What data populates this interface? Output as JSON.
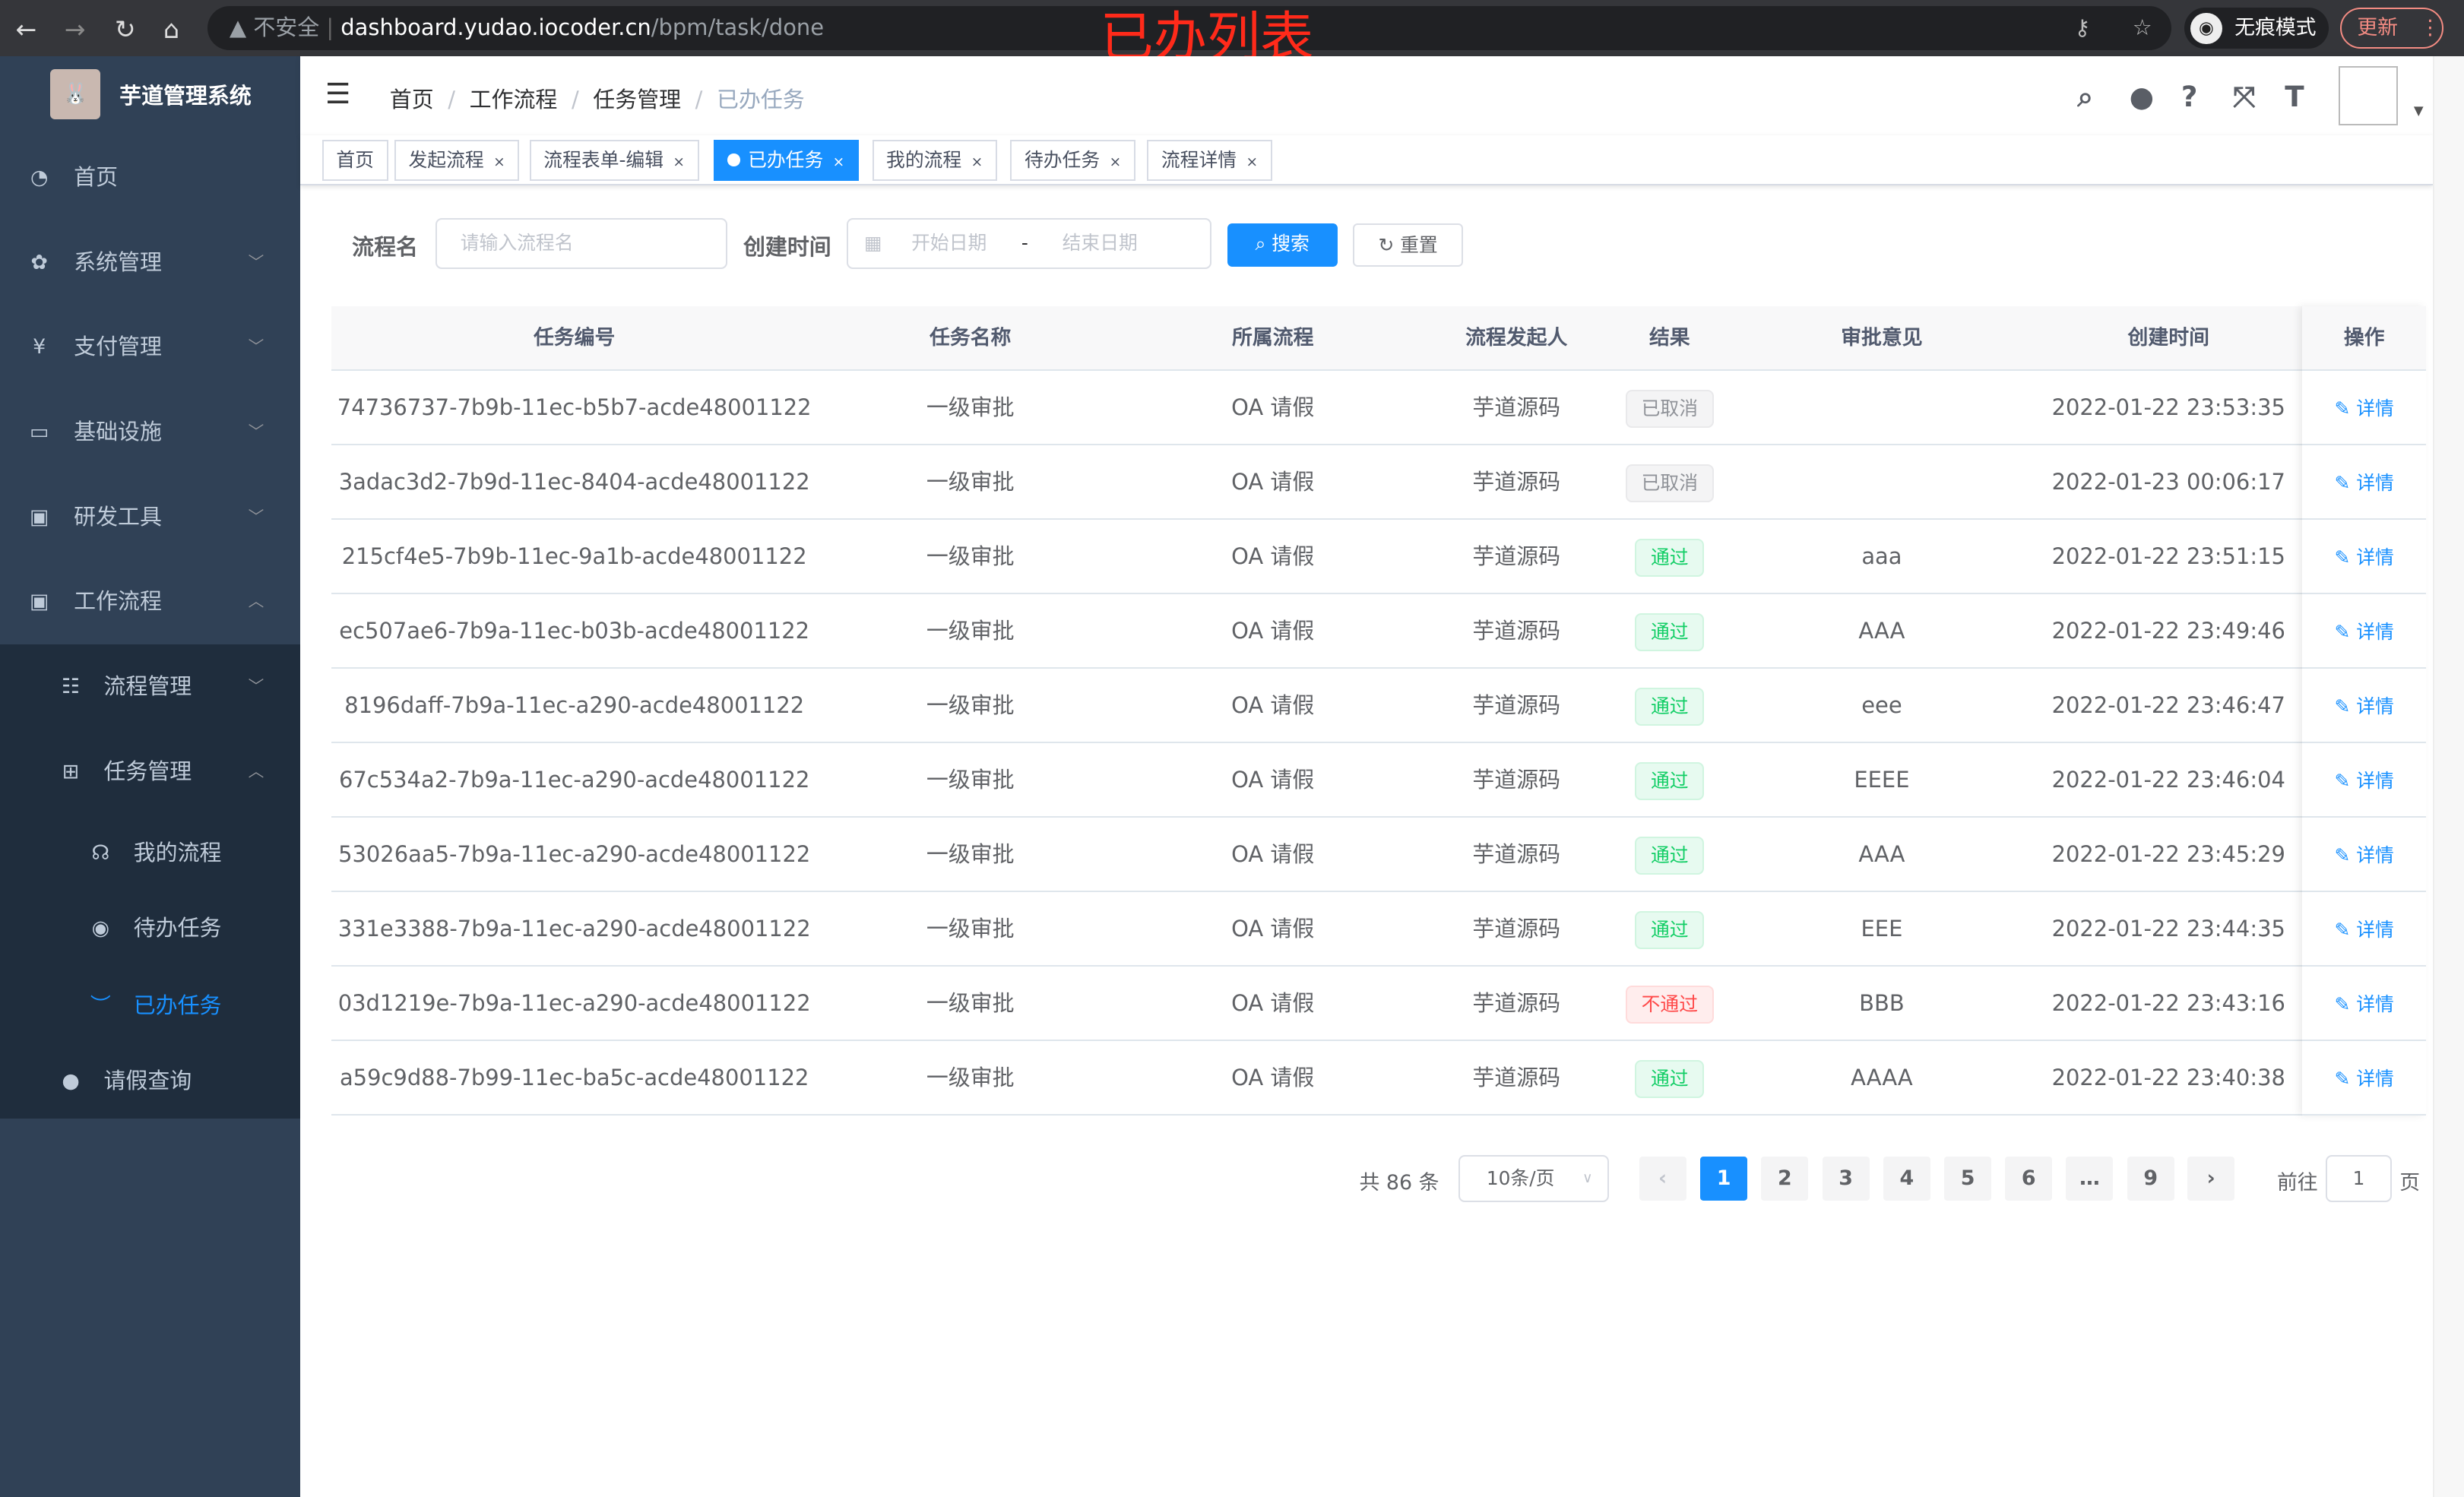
{
  "browser": {
    "security": "不安全",
    "url_host": "dashboard.yudao.iocoder.cn",
    "url_path": "/bpm/task/done",
    "incognito": "无痕模式",
    "update": "更新"
  },
  "overlay_caption": "已办列表",
  "sidebar": {
    "title": "芋道管理系统",
    "items": [
      {
        "label": "首页",
        "icon": "dashboard-icon"
      },
      {
        "label": "系统管理",
        "icon": "gear-icon"
      },
      {
        "label": "支付管理",
        "icon": "yen-icon"
      },
      {
        "label": "基础设施",
        "icon": "monitor-icon"
      },
      {
        "label": "研发工具",
        "icon": "toolbox-icon"
      },
      {
        "label": "工作流程",
        "icon": "toolbox-icon"
      },
      {
        "label": "流程管理",
        "icon": "list-icon"
      },
      {
        "label": "任务管理",
        "icon": "tree-icon"
      },
      {
        "label": "我的流程",
        "icon": "chat-icon"
      },
      {
        "label": "待办任务",
        "icon": "eye-icon"
      },
      {
        "label": "已办任务",
        "icon": "eye-closed-icon"
      },
      {
        "label": "请假查询",
        "icon": "user-icon"
      }
    ]
  },
  "breadcrumb": [
    "首页",
    "工作流程",
    "任务管理",
    "已办任务"
  ],
  "tags": [
    {
      "label": "首页"
    },
    {
      "label": "发起流程"
    },
    {
      "label": "流程表单-编辑"
    },
    {
      "label": "已办任务",
      "active": true
    },
    {
      "label": "我的流程"
    },
    {
      "label": "待办任务"
    },
    {
      "label": "流程详情"
    }
  ],
  "search": {
    "name_label": "流程名",
    "name_placeholder": "请输入流程名",
    "time_label": "创建时间",
    "start_placeholder": "开始日期",
    "sep": "-",
    "end_placeholder": "结束日期",
    "search_btn": "搜索",
    "reset_btn": "重置"
  },
  "table": {
    "headers": [
      "任务编号",
      "任务名称",
      "所属流程",
      "流程发起人",
      "结果",
      "审批意见",
      "创建时间",
      "操作"
    ],
    "rows": [
      {
        "id": "74736737-7b9b-11ec-b5b7-acde48001122",
        "name": "一级审批",
        "process": "OA 请假",
        "starter": "芋道源码",
        "result": "已取消",
        "result_type": "cancel",
        "comment": "",
        "time": "2022-01-22 23:53:35",
        "op": "详情"
      },
      {
        "id": "3adac3d2-7b9d-11ec-8404-acde48001122",
        "name": "一级审批",
        "process": "OA 请假",
        "starter": "芋道源码",
        "result": "已取消",
        "result_type": "cancel",
        "comment": "",
        "time": "2022-01-23 00:06:17",
        "op": "详情"
      },
      {
        "id": "215cf4e5-7b9b-11ec-9a1b-acde48001122",
        "name": "一级审批",
        "process": "OA 请假",
        "starter": "芋道源码",
        "result": "通过",
        "result_type": "pass",
        "comment": "aaa",
        "time": "2022-01-22 23:51:15",
        "op": "详情"
      },
      {
        "id": "ec507ae6-7b9a-11ec-b03b-acde48001122",
        "name": "一级审批",
        "process": "OA 请假",
        "starter": "芋道源码",
        "result": "通过",
        "result_type": "pass",
        "comment": "AAA",
        "time": "2022-01-22 23:49:46",
        "op": "详情"
      },
      {
        "id": "8196daff-7b9a-11ec-a290-acde48001122",
        "name": "一级审批",
        "process": "OA 请假",
        "starter": "芋道源码",
        "result": "通过",
        "result_type": "pass",
        "comment": "eee",
        "time": "2022-01-22 23:46:47",
        "op": "详情"
      },
      {
        "id": "67c534a2-7b9a-11ec-a290-acde48001122",
        "name": "一级审批",
        "process": "OA 请假",
        "starter": "芋道源码",
        "result": "通过",
        "result_type": "pass",
        "comment": "EEEE",
        "time": "2022-01-22 23:46:04",
        "op": "详情"
      },
      {
        "id": "53026aa5-7b9a-11ec-a290-acde48001122",
        "name": "一级审批",
        "process": "OA 请假",
        "starter": "芋道源码",
        "result": "通过",
        "result_type": "pass",
        "comment": "AAA",
        "time": "2022-01-22 23:45:29",
        "op": "详情"
      },
      {
        "id": "331e3388-7b9a-11ec-a290-acde48001122",
        "name": "一级审批",
        "process": "OA 请假",
        "starter": "芋道源码",
        "result": "通过",
        "result_type": "pass",
        "comment": "EEE",
        "time": "2022-01-22 23:44:35",
        "op": "详情"
      },
      {
        "id": "03d1219e-7b9a-11ec-a290-acde48001122",
        "name": "一级审批",
        "process": "OA 请假",
        "starter": "芋道源码",
        "result": "不通过",
        "result_type": "reject",
        "comment": "BBB",
        "time": "2022-01-22 23:43:16",
        "op": "详情"
      },
      {
        "id": "a59c9d88-7b99-11ec-ba5c-acde48001122",
        "name": "一级审批",
        "process": "OA 请假",
        "starter": "芋道源码",
        "result": "通过",
        "result_type": "pass",
        "comment": "AAAA",
        "time": "2022-01-22 23:40:38",
        "op": "详情"
      }
    ]
  },
  "pagination": {
    "total": "共 86 条",
    "page_size": "10条/页",
    "pages": [
      "1",
      "2",
      "3",
      "4",
      "5",
      "6",
      "…",
      "9"
    ],
    "current": "1",
    "goto_label": "前往",
    "goto_value": "1",
    "goto_suffix": "页"
  },
  "colors": {
    "accent": "#1890ff",
    "sidebar": "#304156",
    "submenu": "#1f2d3d",
    "pass": "#13ce66",
    "reject": "#ff4949",
    "cancel": "#909399"
  }
}
